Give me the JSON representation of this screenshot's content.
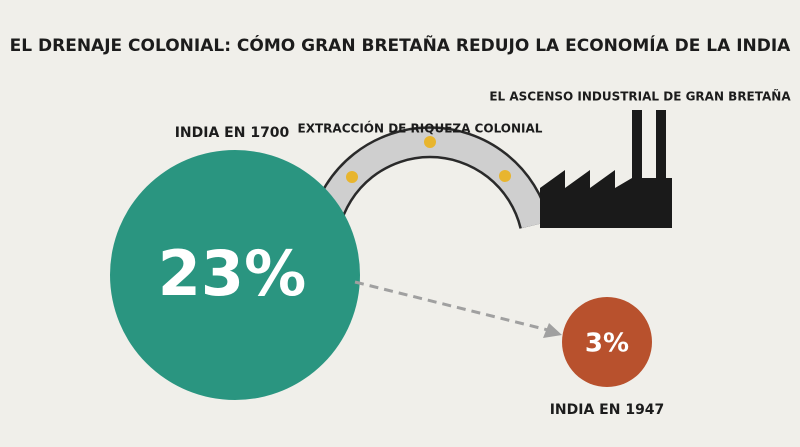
{
  "title": "EL DRENAJE COLONIAL: CÓMO GRAN BRETAÑA REDUJO LA ECONOMÍA DE LA INDIA",
  "india_1700": {
    "label": "INDIA EN 1700",
    "share": "23%"
  },
  "extraction": {
    "label": "EXTRACCIÓN DE RIQUEZA COLONIAL"
  },
  "britain": {
    "label": "EL ASCENSO INDUSTRIAL DE GRAN BRETAÑA"
  },
  "india_1947": {
    "label": "INDIA EN 1947",
    "share": "3%"
  }
}
